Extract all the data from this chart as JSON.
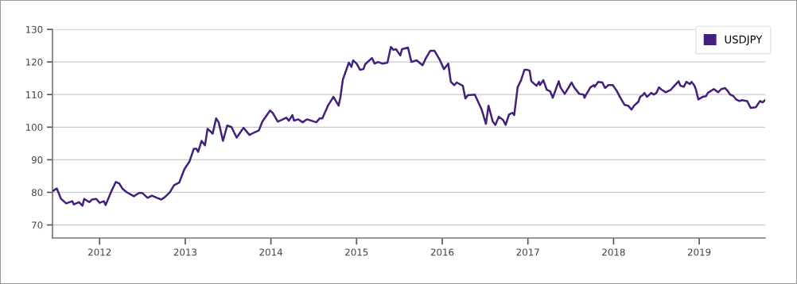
{
  "chart_data": {
    "type": "line",
    "x": [
      2011.46,
      2011.5,
      2011.55,
      2011.61,
      2011.68,
      2011.7,
      2011.76,
      2011.8,
      2011.82,
      2011.88,
      2011.91,
      2011.96,
      2012.0,
      2012.05,
      2012.07,
      2012.14,
      2012.19,
      2012.23,
      2012.27,
      2012.32,
      2012.4,
      2012.46,
      2012.5,
      2012.56,
      2012.61,
      2012.67,
      2012.72,
      2012.76,
      2012.82,
      2012.87,
      2012.93,
      2012.99,
      2013.05,
      2013.1,
      2013.13,
      2013.15,
      2013.19,
      2013.23,
      2013.26,
      2013.29,
      2013.32,
      2013.36,
      2013.39,
      2013.44,
      2013.49,
      2013.54,
      2013.6,
      2013.64,
      2013.68,
      2013.75,
      2013.8,
      2013.86,
      2013.9,
      2013.99,
      2014.02,
      2014.08,
      2014.14,
      2014.18,
      2014.21,
      2014.25,
      2014.27,
      2014.32,
      2014.37,
      2014.42,
      2014.53,
      2014.57,
      2014.6,
      2014.67,
      2014.73,
      2014.79,
      2014.81,
      2014.84,
      2014.91,
      2014.94,
      2014.96,
      2015.0,
      2015.04,
      2015.08,
      2015.1,
      2015.18,
      2015.21,
      2015.25,
      2015.3,
      2015.36,
      2015.4,
      2015.43,
      2015.46,
      2015.51,
      2015.53,
      2015.6,
      2015.64,
      2015.7,
      2015.77,
      2015.81,
      2015.86,
      2015.91,
      2015.97,
      2016.02,
      2016.07,
      2016.1,
      2016.14,
      2016.17,
      2016.24,
      2016.27,
      2016.3,
      2016.38,
      2016.46,
      2016.51,
      2016.54,
      2016.59,
      2016.62,
      2016.66,
      2016.71,
      2016.74,
      2016.78,
      2016.82,
      2016.84,
      2016.88,
      2016.92,
      2016.96,
      2016.99,
      2017.02,
      2017.04,
      2017.1,
      2017.13,
      2017.14,
      2017.18,
      2017.22,
      2017.26,
      2017.29,
      2017.36,
      2017.38,
      2017.43,
      2017.51,
      2017.54,
      2017.6,
      2017.65,
      2017.66,
      2017.68,
      2017.73,
      2017.77,
      2017.78,
      2017.82,
      2017.87,
      2017.9,
      2017.94,
      2017.99,
      2018.04,
      2018.08,
      2018.13,
      2018.17,
      2018.21,
      2018.24,
      2018.29,
      2018.31,
      2018.34,
      2018.36,
      2018.39,
      2018.44,
      2018.47,
      2018.5,
      2018.53,
      2018.56,
      2018.61,
      2018.67,
      2018.71,
      2018.76,
      2018.78,
      2018.82,
      2018.85,
      2018.89,
      2018.91,
      2018.94,
      2018.96,
      2018.99,
      2019.04,
      2019.08,
      2019.1,
      2019.17,
      2019.22,
      2019.26,
      2019.3,
      2019.33,
      2019.36,
      2019.4,
      2019.43,
      2019.47,
      2019.5,
      2019.56,
      2019.6,
      2019.66,
      2019.71,
      2019.74,
      2019.77
    ],
    "series": [
      {
        "name": "USDJPY",
        "color": "#43207e",
        "values": [
          80.5,
          81.2,
          78,
          76.6,
          77.3,
          76.3,
          77,
          75.9,
          78,
          77,
          77.8,
          78,
          76.8,
          77.3,
          76.1,
          80.5,
          83.2,
          82.7,
          81,
          80,
          78.8,
          79.8,
          79.8,
          78.3,
          79,
          78.3,
          77.8,
          78.5,
          80,
          82.2,
          83,
          87.1,
          89.5,
          93.4,
          93.4,
          92.4,
          95.8,
          94.4,
          99.5,
          98.8,
          98,
          102.7,
          101.5,
          95.8,
          100.5,
          100,
          96.8,
          98.3,
          99.8,
          97.6,
          98.3,
          99,
          101.7,
          105.1,
          104.4,
          101.7,
          102.4,
          102.9,
          102,
          103.7,
          102,
          102.4,
          101.5,
          102.4,
          101.5,
          102.7,
          102.7,
          106.8,
          109.3,
          106.6,
          109,
          114.6,
          119.8,
          118.5,
          120.5,
          119.5,
          117.6,
          117.8,
          119.3,
          121.2,
          119.5,
          120,
          119.5,
          119.8,
          124.6,
          123.7,
          123.9,
          122,
          123.9,
          124.4,
          120,
          120.5,
          119,
          121.2,
          123.4,
          123.4,
          120.7,
          117.8,
          119.5,
          113.9,
          112.9,
          113.7,
          112.7,
          108.8,
          109.8,
          110,
          105.4,
          101,
          106.6,
          101.7,
          100.7,
          103.2,
          102.2,
          100.7,
          103.9,
          104.4,
          103.7,
          112.2,
          114.4,
          117.6,
          117.6,
          117.3,
          114.1,
          112.7,
          113.9,
          112.9,
          114.4,
          111.5,
          111,
          109,
          114.1,
          112.2,
          110.2,
          113.7,
          112.2,
          110.2,
          110,
          109,
          110,
          112.2,
          112.9,
          112.4,
          113.9,
          113.7,
          112,
          112.9,
          112.9,
          111,
          109,
          106.8,
          106.6,
          105.4,
          106.6,
          107.8,
          109.3,
          109.8,
          110.5,
          109.3,
          110.5,
          110,
          110.5,
          112.2,
          111.5,
          110.7,
          111.5,
          112.7,
          114.1,
          112.7,
          112.4,
          113.9,
          113.2,
          113.9,
          112.9,
          111.7,
          108.5,
          109.3,
          109.5,
          110.5,
          111.7,
          110.7,
          111.7,
          112,
          111.2,
          110,
          109.5,
          108.5,
          108,
          108.3,
          108,
          105.9,
          106.1,
          108,
          107.6,
          108.3
        ]
      }
    ],
    "xlim": [
      2011.45,
      2019.77
    ],
    "xticks": [
      2012,
      2013,
      2014,
      2015,
      2016,
      2017,
      2018,
      2019
    ],
    "ylim": [
      66,
      130
    ],
    "yticks": [
      70,
      80,
      90,
      100,
      110,
      120,
      130
    ],
    "grid": "y",
    "legend": "top right",
    "marker": "none",
    "line_style": "solid"
  }
}
